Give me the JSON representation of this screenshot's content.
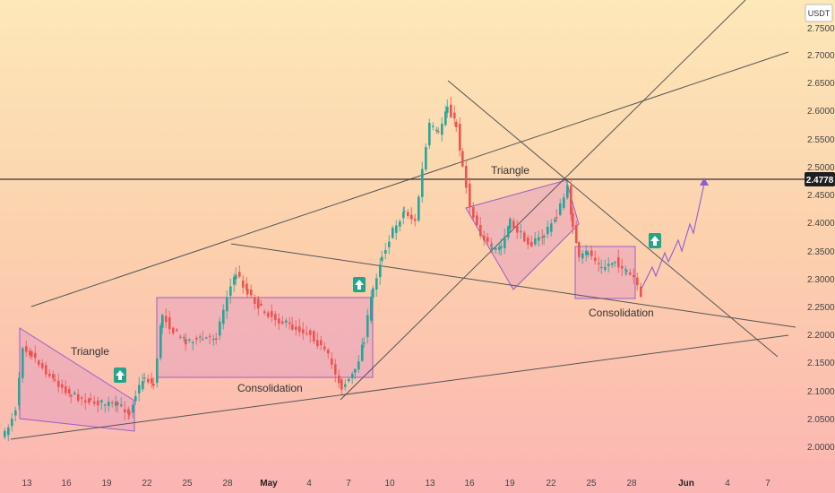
{
  "chart_data": {
    "type": "candlestick",
    "currency_label": "USDT",
    "y_ticks": [
      "2.7500",
      "2.7000",
      "2.6500",
      "2.6000",
      "2.5500",
      "2.5000",
      "2.4500",
      "2.4000",
      "2.3500",
      "2.3000",
      "2.2500",
      "2.2000",
      "2.1500",
      "2.1000",
      "2.0500",
      "2.0000"
    ],
    "x_ticks": [
      {
        "label": "13",
        "bold": false
      },
      {
        "label": "16",
        "bold": false
      },
      {
        "label": "19",
        "bold": false
      },
      {
        "label": "22",
        "bold": false
      },
      {
        "label": "25",
        "bold": false
      },
      {
        "label": "28",
        "bold": false
      },
      {
        "label": "May",
        "bold": true
      },
      {
        "label": "4",
        "bold": false
      },
      {
        "label": "7",
        "bold": false
      },
      {
        "label": "10",
        "bold": false
      },
      {
        "label": "13",
        "bold": false
      },
      {
        "label": "16",
        "bold": false
      },
      {
        "label": "19",
        "bold": false
      },
      {
        "label": "22",
        "bold": false
      },
      {
        "label": "25",
        "bold": false
      },
      {
        "label": "28",
        "bold": false
      },
      {
        "label": "Jun",
        "bold": true
      },
      {
        "label": "4",
        "bold": false
      },
      {
        "label": "7",
        "bold": false
      }
    ],
    "price_line": {
      "value": 2.4778,
      "label": "2.4778"
    },
    "annotations": {
      "triangle_1": "Triangle",
      "consolidation_1": "Consolidation",
      "triangle_2": "Triangle",
      "consolidation_2": "Consolidation"
    },
    "colors": {
      "up": "#26a69a",
      "down": "#ef5350",
      "pattern_fill": "#e8a0c0",
      "pattern_stroke": "#9c5fc4",
      "line": "#555555",
      "forecast": "#8e5fd0",
      "badge": "#22a58a"
    }
  }
}
